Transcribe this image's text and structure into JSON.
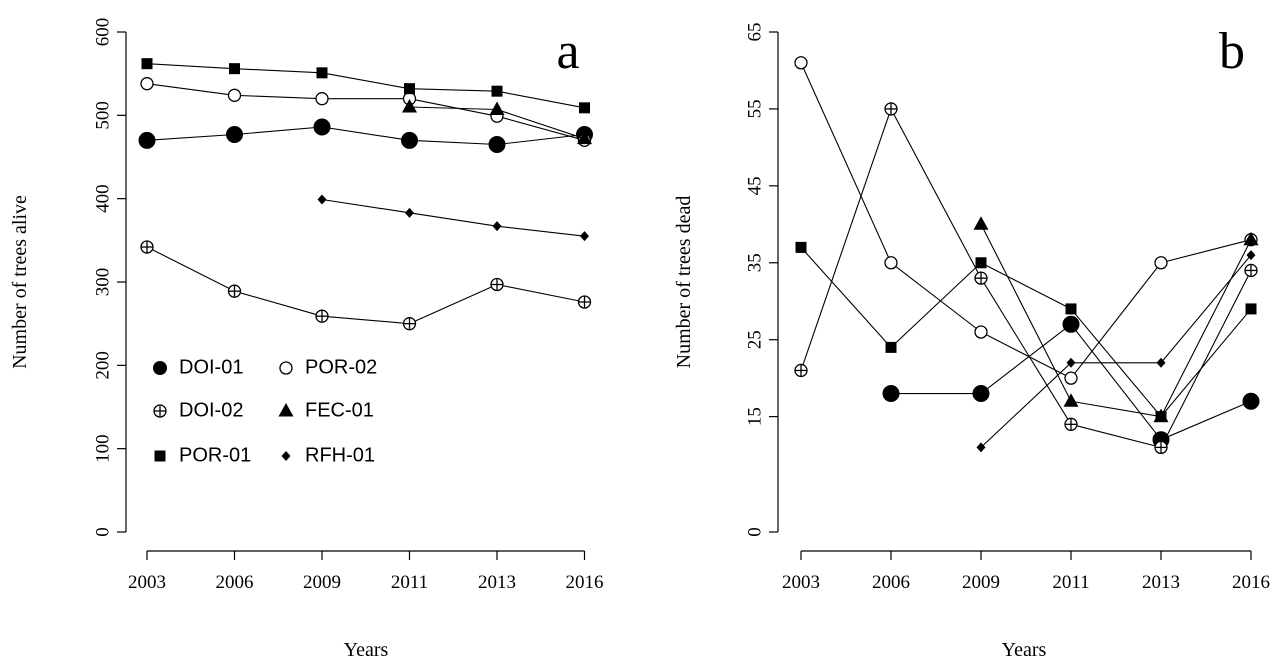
{
  "chart_data": [
    {
      "type": "line",
      "panel_letter": "a",
      "xlabel": "Years",
      "ylabel": "Number of trees  alive",
      "x": [
        2003,
        2006,
        2009,
        2011,
        2013,
        2016
      ],
      "x_tick_labels": [
        "2003",
        "2006",
        "2009",
        "2011",
        "2013",
        "2016"
      ],
      "ylim": [
        0,
        600
      ],
      "y_ticks": [
        0,
        100,
        200,
        300,
        400,
        500,
        600
      ],
      "y_tick_labels": [
        "0",
        "100",
        "200",
        "300",
        "400",
        "500",
        "600"
      ],
      "grid": false,
      "legend_position": "bottom-left",
      "series": [
        {
          "name": "DOI-01",
          "marker": "filled-circle-large",
          "values": [
            470,
            477,
            486,
            470,
            465,
            477
          ]
        },
        {
          "name": "POR-02",
          "marker": "open-circle",
          "values": [
            538,
            524,
            520,
            520,
            499,
            470
          ]
        },
        {
          "name": "DOI-02",
          "marker": "crossed-circle",
          "values": [
            342,
            289,
            259,
            250,
            297,
            276
          ]
        },
        {
          "name": "FEC-01",
          "marker": "filled-triangle",
          "values": [
            null,
            null,
            null,
            510,
            507,
            472
          ]
        },
        {
          "name": "POR-01",
          "marker": "filled-square",
          "values": [
            562,
            556,
            551,
            532,
            529,
            509
          ]
        },
        {
          "name": "RFH-01",
          "marker": "filled-diamond",
          "values": [
            null,
            null,
            399,
            383,
            367,
            355
          ]
        }
      ]
    },
    {
      "type": "line",
      "panel_letter": "b",
      "xlabel": "Years",
      "ylabel": "Number of trees dead",
      "x": [
        2003,
        2006,
        2009,
        2011,
        2013,
        2016
      ],
      "x_tick_labels": [
        "2003",
        "2006",
        "2009",
        "2011",
        "2013",
        "2016"
      ],
      "ylim": [
        0,
        65
      ],
      "y_ticks": [
        0,
        15,
        25,
        35,
        45,
        55,
        65
      ],
      "y_tick_labels": [
        "0",
        "15",
        "25",
        "35",
        "45",
        "55",
        "65"
      ],
      "grid": false,
      "series": [
        {
          "name": "DOI-01",
          "marker": "filled-circle-large",
          "values": [
            null,
            18,
            18,
            27,
            12,
            17
          ]
        },
        {
          "name": "POR-02",
          "marker": "open-circle",
          "values": [
            61,
            35,
            26,
            20,
            35,
            38
          ]
        },
        {
          "name": "DOI-02",
          "marker": "crossed-circle",
          "values": [
            21,
            55,
            33,
            14,
            11,
            34
          ]
        },
        {
          "name": "FEC-01",
          "marker": "filled-triangle",
          "values": [
            null,
            null,
            40,
            17,
            15,
            38
          ]
        },
        {
          "name": "POR-01",
          "marker": "filled-square",
          "values": [
            37,
            24,
            35,
            29,
            15,
            29
          ]
        },
        {
          "name": "RFH-01",
          "marker": "filled-diamond",
          "values": [
            null,
            null,
            11,
            22,
            22,
            36
          ]
        }
      ]
    }
  ]
}
